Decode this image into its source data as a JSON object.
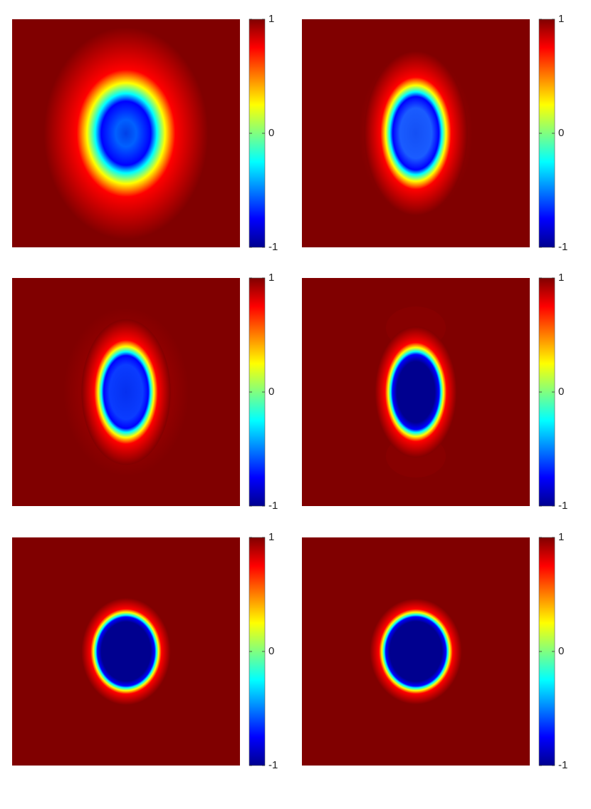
{
  "chart_data": [
    {
      "type": "heatmap",
      "colormap": "jet",
      "clim": [
        -1,
        1
      ],
      "cticks": [
        -1,
        0,
        1
      ]
    },
    {
      "type": "heatmap",
      "colormap": "jet",
      "clim": [
        -1,
        1
      ],
      "cticks": [
        -1,
        0,
        1
      ]
    },
    {
      "type": "heatmap",
      "colormap": "jet",
      "clim": [
        -1,
        1
      ],
      "cticks": [
        -1,
        0,
        1
      ]
    },
    {
      "type": "heatmap",
      "colormap": "jet",
      "clim": [
        -1,
        1
      ],
      "cticks": [
        -1,
        0,
        1
      ]
    },
    {
      "type": "heatmap",
      "colormap": "jet",
      "clim": [
        -1,
        1
      ],
      "cticks": [
        -1,
        0,
        1
      ]
    },
    {
      "type": "heatmap",
      "colormap": "jet",
      "clim": [
        -1,
        1
      ],
      "cticks": [
        -1,
        0,
        1
      ]
    }
  ]
}
